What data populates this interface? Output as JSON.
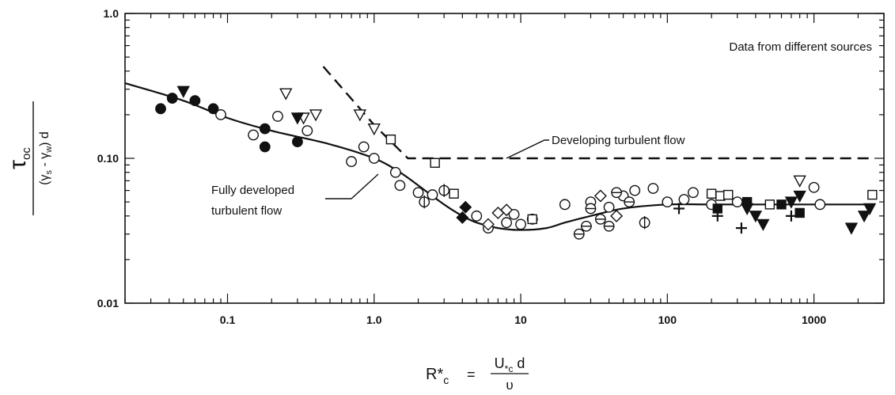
{
  "chart_data": {
    "type": "scatter",
    "title": "",
    "x_scale": "log",
    "y_scale": "log",
    "xlim": [
      0.02,
      3000
    ],
    "ylim": [
      0.01,
      1.0
    ],
    "x_tick_labels": [
      "0.1",
      "1.0",
      "10",
      "100",
      "1000"
    ],
    "x_tick_values": [
      0.1,
      1,
      10,
      100,
      1000
    ],
    "y_tick_labels": [
      "0.01",
      "0.10",
      "1.0"
    ],
    "y_tick_values": [
      0.01,
      0.1,
      1.0
    ],
    "ylabel": {
      "numerator": "τ",
      "numerator_sub": "oc",
      "denominator_open": "(γ",
      "denominator_sub1": "s",
      "denominator_mid": " - γ",
      "denominator_sub2": "w",
      "denominator_close": ") d"
    },
    "xlabel": {
      "lhs": "R*",
      "lhs_sub": "c",
      "equals": "=",
      "numerator": "U",
      "numerator_sub": "*c",
      "numerator_tail": " d",
      "denominator": "υ"
    },
    "annotations": {
      "legend_note": "Data from different sources",
      "developing": "Developing turbulent flow",
      "fully_line1": "Fully developed",
      "fully_line2": "turbulent flow"
    },
    "series": [
      {
        "label": "Fully developed turbulent flow",
        "style": "solid-line",
        "x": [
          0.02,
          0.05,
          0.1,
          0.2,
          0.5,
          1.0,
          1.5,
          2.0,
          3.0,
          4.0,
          5.0,
          7.0,
          10,
          15,
          20,
          30,
          50,
          100,
          200,
          500,
          1000,
          2500
        ],
        "y": [
          0.33,
          0.25,
          0.19,
          0.155,
          0.125,
          0.1,
          0.08,
          0.065,
          0.048,
          0.04,
          0.036,
          0.033,
          0.032,
          0.033,
          0.036,
          0.04,
          0.045,
          0.048,
          0.048,
          0.048,
          0.048,
          0.048
        ]
      },
      {
        "label": "Developing turbulent flow",
        "style": "dashed-line",
        "x": [
          0.45,
          1.0,
          1.7,
          2500
        ],
        "y": [
          0.43,
          0.17,
          0.1,
          0.1
        ]
      },
      {
        "label": "open circles",
        "marker": "open-circle",
        "x": [
          0.09,
          0.15,
          0.22,
          0.35,
          0.7,
          0.85,
          1.0,
          1.4,
          1.5,
          2.0,
          2.5,
          5.0,
          6.0,
          8.0,
          9.0,
          10,
          12,
          20,
          30,
          40,
          50,
          60,
          80,
          100,
          130,
          150,
          200,
          300,
          1000,
          1100
        ],
        "y": [
          0.2,
          0.145,
          0.195,
          0.155,
          0.095,
          0.12,
          0.1,
          0.08,
          0.065,
          0.058,
          0.056,
          0.04,
          0.033,
          0.036,
          0.041,
          0.035,
          0.038,
          0.048,
          0.05,
          0.046,
          0.055,
          0.06,
          0.062,
          0.05,
          0.052,
          0.058,
          0.048,
          0.05,
          0.063,
          0.048
        ]
      },
      {
        "label": "filled circles",
        "marker": "filled-circle",
        "x": [
          0.035,
          0.042,
          0.06,
          0.08,
          0.18,
          0.3,
          0.18
        ],
        "y": [
          0.22,
          0.26,
          0.25,
          0.22,
          0.12,
          0.13,
          0.16
        ]
      },
      {
        "label": "open triangles down",
        "marker": "open-triangle-down",
        "x": [
          0.25,
          0.33,
          0.4,
          0.8,
          1.0,
          800
        ],
        "y": [
          0.28,
          0.19,
          0.2,
          0.2,
          0.16,
          0.07
        ]
      },
      {
        "label": "filled triangles down",
        "marker": "filled-triangle-down",
        "x": [
          0.05,
          0.3,
          350,
          400,
          450,
          700,
          800,
          1800,
          2200,
          2400
        ],
        "y": [
          0.29,
          0.19,
          0.045,
          0.04,
          0.035,
          0.05,
          0.055,
          0.033,
          0.04,
          0.045
        ]
      },
      {
        "label": "open squares",
        "marker": "open-square",
        "x": [
          1.3,
          2.6,
          3.5,
          12,
          200,
          230,
          260,
          500,
          2500
        ],
        "y": [
          0.135,
          0.093,
          0.057,
          0.038,
          0.057,
          0.055,
          0.056,
          0.048,
          0.056
        ]
      },
      {
        "label": "filled squares",
        "marker": "filled-square",
        "x": [
          220,
          350,
          600,
          800
        ],
        "y": [
          0.045,
          0.05,
          0.048,
          0.042
        ]
      },
      {
        "label": "open diamonds",
        "marker": "open-diamond",
        "x": [
          6.0,
          7.0,
          8.0,
          35,
          45
        ],
        "y": [
          0.035,
          0.042,
          0.044,
          0.055,
          0.04
        ]
      },
      {
        "label": "filled diamonds",
        "marker": "filled-diamond",
        "x": [
          4.0,
          4.2
        ],
        "y": [
          0.039,
          0.046
        ]
      },
      {
        "label": "circles with horizontal line",
        "marker": "circle-hline",
        "x": [
          25,
          28,
          30,
          35,
          40,
          45,
          55
        ],
        "y": [
          0.03,
          0.034,
          0.045,
          0.038,
          0.034,
          0.058,
          0.05
        ]
      },
      {
        "label": "circles with vertical line",
        "marker": "circle-vline",
        "x": [
          2.2,
          3.0,
          70
        ],
        "y": [
          0.05,
          0.06,
          0.036
        ]
      },
      {
        "label": "plus signs",
        "marker": "plus",
        "x": [
          120,
          220,
          320,
          700
        ],
        "y": [
          0.045,
          0.04,
          0.033,
          0.04
        ]
      }
    ]
  }
}
